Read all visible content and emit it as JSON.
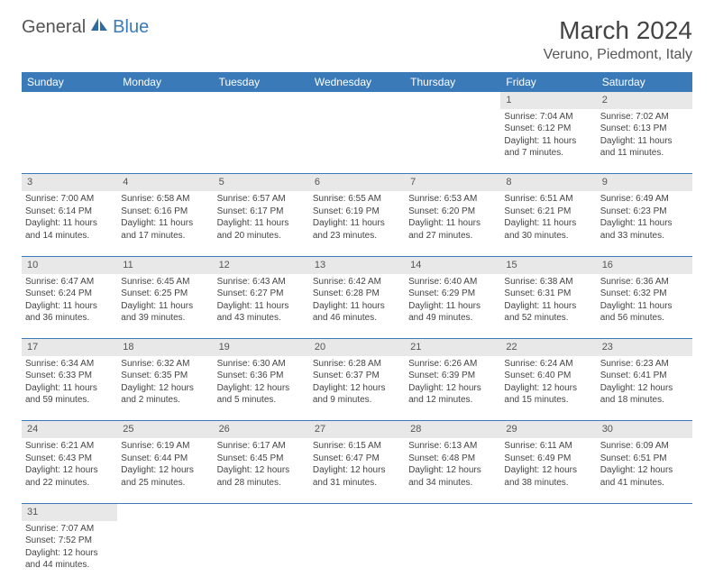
{
  "brand": {
    "part1": "General",
    "part2": "Blue"
  },
  "title": "March 2024",
  "location": "Veruno, Piedmont, Italy",
  "colors": {
    "header_bg": "#3a7ab8",
    "header_text": "#ffffff",
    "daynum_bg": "#e8e8e8",
    "row_divider": "#3a7ab8",
    "text": "#444444",
    "background": "#ffffff"
  },
  "dayHeaders": [
    "Sunday",
    "Monday",
    "Tuesday",
    "Wednesday",
    "Thursday",
    "Friday",
    "Saturday"
  ],
  "weeks": [
    [
      null,
      null,
      null,
      null,
      null,
      {
        "n": "1",
        "sr": "Sunrise: 7:04 AM",
        "ss": "Sunset: 6:12 PM",
        "dl1": "Daylight: 11 hours",
        "dl2": "and 7 minutes."
      },
      {
        "n": "2",
        "sr": "Sunrise: 7:02 AM",
        "ss": "Sunset: 6:13 PM",
        "dl1": "Daylight: 11 hours",
        "dl2": "and 11 minutes."
      }
    ],
    [
      {
        "n": "3",
        "sr": "Sunrise: 7:00 AM",
        "ss": "Sunset: 6:14 PM",
        "dl1": "Daylight: 11 hours",
        "dl2": "and 14 minutes."
      },
      {
        "n": "4",
        "sr": "Sunrise: 6:58 AM",
        "ss": "Sunset: 6:16 PM",
        "dl1": "Daylight: 11 hours",
        "dl2": "and 17 minutes."
      },
      {
        "n": "5",
        "sr": "Sunrise: 6:57 AM",
        "ss": "Sunset: 6:17 PM",
        "dl1": "Daylight: 11 hours",
        "dl2": "and 20 minutes."
      },
      {
        "n": "6",
        "sr": "Sunrise: 6:55 AM",
        "ss": "Sunset: 6:19 PM",
        "dl1": "Daylight: 11 hours",
        "dl2": "and 23 minutes."
      },
      {
        "n": "7",
        "sr": "Sunrise: 6:53 AM",
        "ss": "Sunset: 6:20 PM",
        "dl1": "Daylight: 11 hours",
        "dl2": "and 27 minutes."
      },
      {
        "n": "8",
        "sr": "Sunrise: 6:51 AM",
        "ss": "Sunset: 6:21 PM",
        "dl1": "Daylight: 11 hours",
        "dl2": "and 30 minutes."
      },
      {
        "n": "9",
        "sr": "Sunrise: 6:49 AM",
        "ss": "Sunset: 6:23 PM",
        "dl1": "Daylight: 11 hours",
        "dl2": "and 33 minutes."
      }
    ],
    [
      {
        "n": "10",
        "sr": "Sunrise: 6:47 AM",
        "ss": "Sunset: 6:24 PM",
        "dl1": "Daylight: 11 hours",
        "dl2": "and 36 minutes."
      },
      {
        "n": "11",
        "sr": "Sunrise: 6:45 AM",
        "ss": "Sunset: 6:25 PM",
        "dl1": "Daylight: 11 hours",
        "dl2": "and 39 minutes."
      },
      {
        "n": "12",
        "sr": "Sunrise: 6:43 AM",
        "ss": "Sunset: 6:27 PM",
        "dl1": "Daylight: 11 hours",
        "dl2": "and 43 minutes."
      },
      {
        "n": "13",
        "sr": "Sunrise: 6:42 AM",
        "ss": "Sunset: 6:28 PM",
        "dl1": "Daylight: 11 hours",
        "dl2": "and 46 minutes."
      },
      {
        "n": "14",
        "sr": "Sunrise: 6:40 AM",
        "ss": "Sunset: 6:29 PM",
        "dl1": "Daylight: 11 hours",
        "dl2": "and 49 minutes."
      },
      {
        "n": "15",
        "sr": "Sunrise: 6:38 AM",
        "ss": "Sunset: 6:31 PM",
        "dl1": "Daylight: 11 hours",
        "dl2": "and 52 minutes."
      },
      {
        "n": "16",
        "sr": "Sunrise: 6:36 AM",
        "ss": "Sunset: 6:32 PM",
        "dl1": "Daylight: 11 hours",
        "dl2": "and 56 minutes."
      }
    ],
    [
      {
        "n": "17",
        "sr": "Sunrise: 6:34 AM",
        "ss": "Sunset: 6:33 PM",
        "dl1": "Daylight: 11 hours",
        "dl2": "and 59 minutes."
      },
      {
        "n": "18",
        "sr": "Sunrise: 6:32 AM",
        "ss": "Sunset: 6:35 PM",
        "dl1": "Daylight: 12 hours",
        "dl2": "and 2 minutes."
      },
      {
        "n": "19",
        "sr": "Sunrise: 6:30 AM",
        "ss": "Sunset: 6:36 PM",
        "dl1": "Daylight: 12 hours",
        "dl2": "and 5 minutes."
      },
      {
        "n": "20",
        "sr": "Sunrise: 6:28 AM",
        "ss": "Sunset: 6:37 PM",
        "dl1": "Daylight: 12 hours",
        "dl2": "and 9 minutes."
      },
      {
        "n": "21",
        "sr": "Sunrise: 6:26 AM",
        "ss": "Sunset: 6:39 PM",
        "dl1": "Daylight: 12 hours",
        "dl2": "and 12 minutes."
      },
      {
        "n": "22",
        "sr": "Sunrise: 6:24 AM",
        "ss": "Sunset: 6:40 PM",
        "dl1": "Daylight: 12 hours",
        "dl2": "and 15 minutes."
      },
      {
        "n": "23",
        "sr": "Sunrise: 6:23 AM",
        "ss": "Sunset: 6:41 PM",
        "dl1": "Daylight: 12 hours",
        "dl2": "and 18 minutes."
      }
    ],
    [
      {
        "n": "24",
        "sr": "Sunrise: 6:21 AM",
        "ss": "Sunset: 6:43 PM",
        "dl1": "Daylight: 12 hours",
        "dl2": "and 22 minutes."
      },
      {
        "n": "25",
        "sr": "Sunrise: 6:19 AM",
        "ss": "Sunset: 6:44 PM",
        "dl1": "Daylight: 12 hours",
        "dl2": "and 25 minutes."
      },
      {
        "n": "26",
        "sr": "Sunrise: 6:17 AM",
        "ss": "Sunset: 6:45 PM",
        "dl1": "Daylight: 12 hours",
        "dl2": "and 28 minutes."
      },
      {
        "n": "27",
        "sr": "Sunrise: 6:15 AM",
        "ss": "Sunset: 6:47 PM",
        "dl1": "Daylight: 12 hours",
        "dl2": "and 31 minutes."
      },
      {
        "n": "28",
        "sr": "Sunrise: 6:13 AM",
        "ss": "Sunset: 6:48 PM",
        "dl1": "Daylight: 12 hours",
        "dl2": "and 34 minutes."
      },
      {
        "n": "29",
        "sr": "Sunrise: 6:11 AM",
        "ss": "Sunset: 6:49 PM",
        "dl1": "Daylight: 12 hours",
        "dl2": "and 38 minutes."
      },
      {
        "n": "30",
        "sr": "Sunrise: 6:09 AM",
        "ss": "Sunset: 6:51 PM",
        "dl1": "Daylight: 12 hours",
        "dl2": "and 41 minutes."
      }
    ],
    [
      {
        "n": "31",
        "sr": "Sunrise: 7:07 AM",
        "ss": "Sunset: 7:52 PM",
        "dl1": "Daylight: 12 hours",
        "dl2": "and 44 minutes."
      },
      null,
      null,
      null,
      null,
      null,
      null
    ]
  ]
}
